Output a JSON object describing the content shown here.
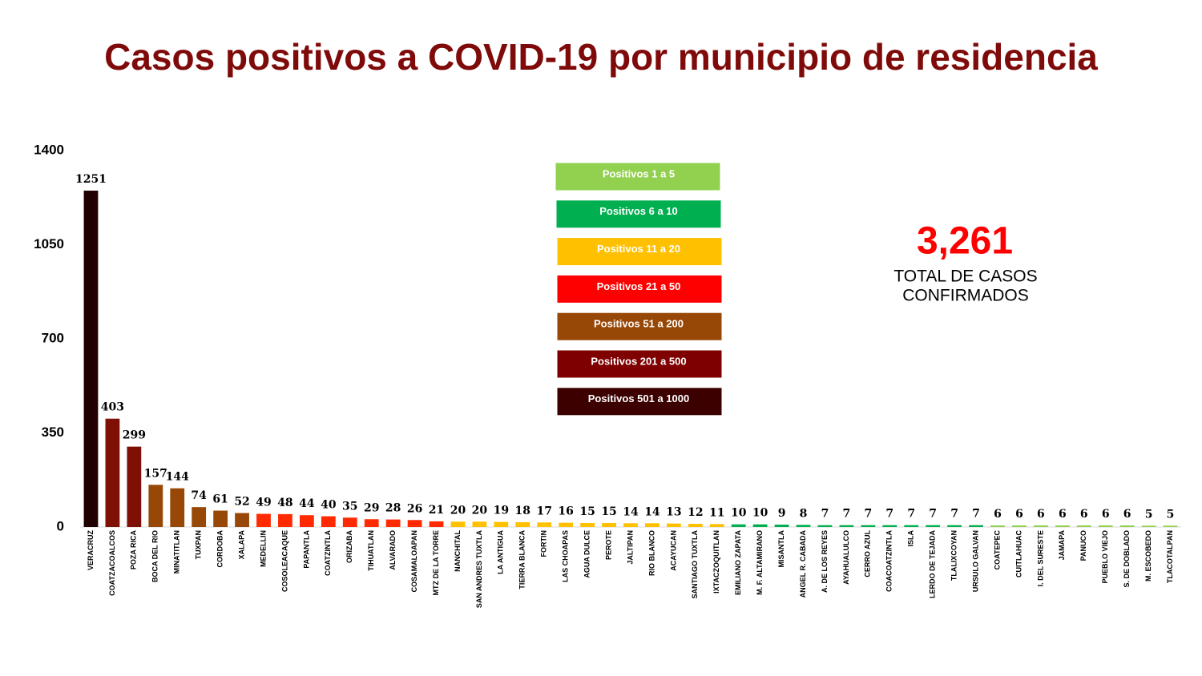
{
  "chart_data": {
    "type": "bar",
    "title": "Casos positivos a COVID-19  por municipio de residencia",
    "categories": [
      "VERACRUZ",
      "COATZACOALCOS",
      "POZA RICA",
      "BOCA DEL RIO",
      "MINATITLAN",
      "TUXPAN",
      "CORDOBA",
      "XALAPA",
      "MEDELLIN",
      "COSOLEACAQUE",
      "PAPANTLA",
      "COATZINTLA",
      "ORIZABA",
      "TIHUATLAN",
      "ALVARADO",
      "COSAMALOAPAN",
      "MTZ DE LA TORRE",
      "NANCHITAL",
      "SAN ANDRES TUXTLA",
      "LA ANTIGUA",
      "TIERRA BLANCA",
      "FORTIN",
      "LAS CHOAPAS",
      "AGUA DULCE",
      "PEROTE",
      "JALTIPAN",
      "RIO BLANCO",
      "ACAYUCAN",
      "SANTIAGO TUXTLA",
      "IXTACZOQUITLAN",
      "EMILIANO ZAPATA",
      "M. F. ALTAMIRANO",
      "MISANTLA",
      "ANGEL R. CABADA",
      "A. DE LOS REYES",
      "AYAHUALULCO",
      "CERRO AZUL",
      "COACOATZINTLA",
      "ISLA",
      "LERDO DE TEJADA",
      "TLALIXCOYAN",
      "URSULO GALVAN",
      "COATEPEC",
      "CUITLAHUAC",
      "I. DEL SURESTE",
      "JAMAPA",
      "PANUCO",
      "PUEBLO VIEJO",
      "S. DE DOBLADO",
      "M. ESCOBEDO",
      "TLACOTALPAN"
    ],
    "values": [
      1251,
      403,
      299,
      157,
      144,
      74,
      61,
      52,
      49,
      48,
      44,
      40,
      35,
      29,
      28,
      26,
      21,
      20,
      20,
      19,
      18,
      17,
      16,
      15,
      15,
      14,
      14,
      13,
      12,
      11,
      10,
      10,
      9,
      8,
      7,
      7,
      7,
      7,
      7,
      7,
      7,
      7,
      6,
      6,
      6,
      6,
      6,
      6,
      6,
      5,
      5
    ],
    "colors": [
      "#200000",
      "#7f1006",
      "#7f1006",
      "#974806",
      "#974806",
      "#974806",
      "#974806",
      "#974806",
      "#ff2a00",
      "#ff2a00",
      "#ff2a00",
      "#ff2a00",
      "#ff2a00",
      "#ff2a00",
      "#ff2a00",
      "#ff2a00",
      "#ff2a00",
      "#ffc000",
      "#ffc000",
      "#ffc000",
      "#ffc000",
      "#ffc000",
      "#ffc000",
      "#ffc000",
      "#ffc000",
      "#ffc000",
      "#ffc000",
      "#ffc000",
      "#ffc000",
      "#ffc000",
      "#00b050",
      "#00b050",
      "#00b050",
      "#00b050",
      "#00b050",
      "#00b050",
      "#00b050",
      "#00b050",
      "#00b050",
      "#00b050",
      "#00b050",
      "#00b050",
      "#92d050",
      "#92d050",
      "#92d050",
      "#92d050",
      "#92d050",
      "#92d050",
      "#92d050",
      "#92d050",
      "#92d050"
    ],
    "ylim": [
      0,
      1400
    ],
    "yticks": [
      0,
      350,
      700,
      1050,
      1400
    ],
    "legend": [
      {
        "label": "Positivos 1 a 5",
        "color": "#92d050"
      },
      {
        "label": "Positivos 6 a 10",
        "color": "#00b050"
      },
      {
        "label": "Positivos 11 a 20",
        "color": "#ffc000"
      },
      {
        "label": "Positivos 21 a 50",
        "color": "#ff0000"
      },
      {
        "label": "Positivos 51 a 200",
        "color": "#984806"
      },
      {
        "label": "Positivos 201 a 500",
        "color": "#7f0000"
      },
      {
        "label": "Positivos 501 a 1000",
        "color": "#3c0000"
      }
    ],
    "total": "3,261",
    "total_label": [
      "TOTAL DE CASOS",
      "CONFIRMADOS"
    ]
  }
}
